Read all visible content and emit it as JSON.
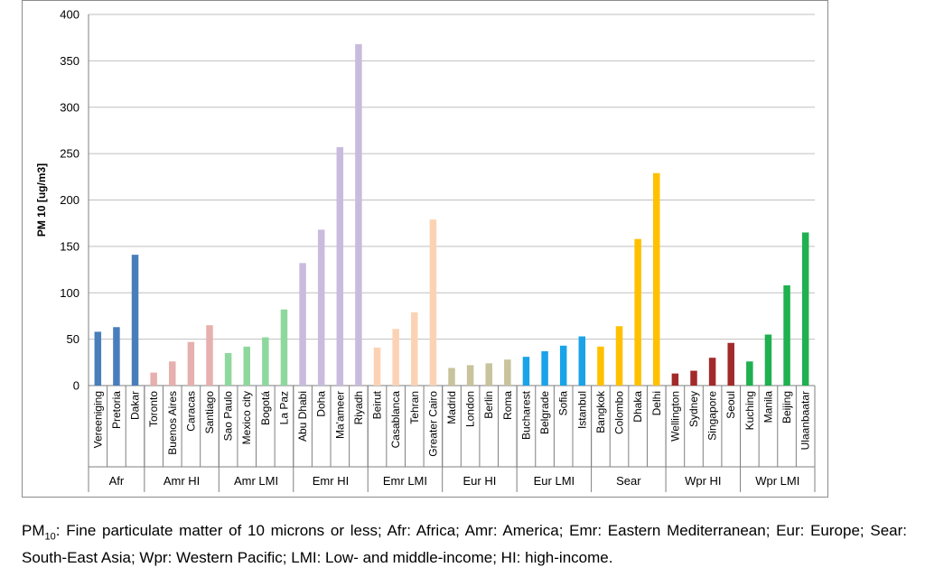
{
  "chart_data": {
    "type": "bar",
    "ylabel": "PM 10 [ug/m3]",
    "ylim": [
      0,
      400
    ],
    "yticks": [
      0,
      50,
      100,
      150,
      200,
      250,
      300,
      350,
      400
    ],
    "grid": true,
    "legend": "none",
    "groups": [
      {
        "name": "Afr",
        "color": "#4a7ebb",
        "categories": [
          "Vereeniging",
          "Pretoria",
          "Dakar"
        ],
        "values": [
          58,
          63,
          141
        ]
      },
      {
        "name": "Amr HI",
        "color": "#e6b0ae",
        "categories": [
          "Toronto",
          "Buenos Aires",
          "Caracas",
          "Santiago"
        ],
        "values": [
          14,
          26,
          47,
          65
        ]
      },
      {
        "name": "Amr LMI",
        "color": "#8ed89e",
        "categories": [
          "Sao Paulo",
          "Mexico city",
          "Bogotá",
          "La Paz"
        ],
        "values": [
          35,
          42,
          52,
          82
        ]
      },
      {
        "name": "Emr HI",
        "color": "#c9bbde",
        "categories": [
          "Abu Dhabi",
          "Doha",
          "Ma'ameer",
          "Riyadh"
        ],
        "values": [
          132,
          168,
          257,
          368
        ]
      },
      {
        "name": "Emr LMI",
        "color": "#fbd3b4",
        "categories": [
          "Beirut",
          "Casablanca",
          "Tehran",
          "Greater Cairo"
        ],
        "values": [
          41,
          61,
          79,
          179
        ]
      },
      {
        "name": "Eur HI",
        "color": "#c8c39c",
        "categories": [
          "Madrid",
          "London",
          "Berlin",
          "Roma"
        ],
        "values": [
          19,
          22,
          24,
          28
        ]
      },
      {
        "name": "Eur LMI",
        "color": "#1aa3e8",
        "categories": [
          "Bucharest",
          "Belgrade",
          "Sofia",
          "Istanbul"
        ],
        "values": [
          31,
          37,
          43,
          53
        ]
      },
      {
        "name": "Sear",
        "color": "#ffc000",
        "categories": [
          "Bangkok",
          "Colombo",
          "Dhaka",
          "Delhi"
        ],
        "values": [
          42,
          64,
          158,
          229
        ]
      },
      {
        "name": "Wpr HI",
        "color": "#a32a2a",
        "categories": [
          "Wellington",
          "Sydney",
          "Singapore",
          "Seoul"
        ],
        "values": [
          13,
          16,
          30,
          46
        ]
      },
      {
        "name": "Wpr LMI",
        "color": "#1fb04f",
        "categories": [
          "Kuching",
          "Manila",
          "Beijing",
          "Ulaanbaatar"
        ],
        "values": [
          26,
          55,
          108,
          165
        ]
      }
    ]
  },
  "caption": {
    "pm_symbol": "PM",
    "pm_subscript": "10",
    "text": ": Fine particulate matter of 10 microns or less; Afr: Africa;  Amr: America; Emr: Eastern Mediterranean; Eur: Europe; Sear: South-East Asia; Wpr: Western Pacific; LMI: Low- and middle-income; HI: high-income."
  }
}
